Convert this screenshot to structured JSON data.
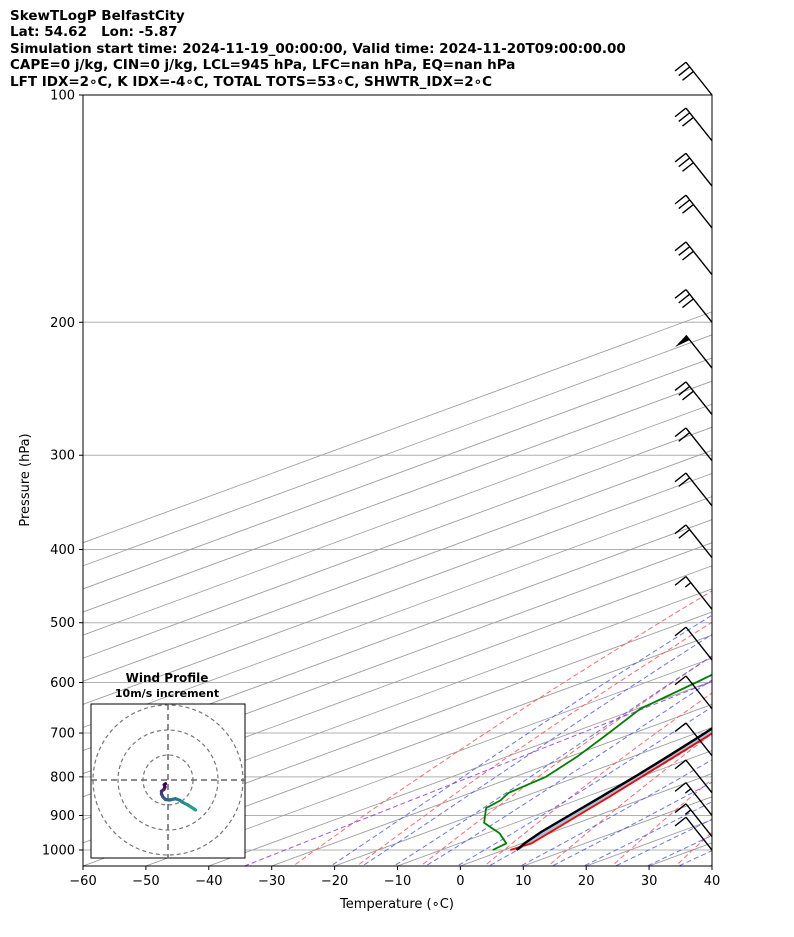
{
  "header": {
    "line1": "SkewTLogP BelfastCity",
    "line2": "Lat: 54.62   Lon: -5.87",
    "line3": "Simulation start time: 2024-11-19_00:00:00, Valid time: 2024-11-20T09:00:00.00",
    "line4": "CAPE=0 j/kg, CIN=0 j/kg, LCL=945 hPa, LFC=nan hPa, EQ=nan hPa",
    "line5": "LFT IDX=2∘C, K IDX=-4∘C, TOTAL TOTS=53∘C, SHWTR_IDX=2∘C"
  },
  "chart_data": {
    "type": "line",
    "xlabel": "Temperature (∘C)",
    "ylabel": "Pressure (hPa)",
    "xlim": [
      -60,
      40
    ],
    "ylim": [
      1050,
      100
    ],
    "y_scale": "log",
    "grid": true,
    "x_ticks": [
      "−60",
      "−50",
      "−40",
      "−30",
      "−20",
      "−10",
      "0",
      "10",
      "20",
      "30",
      "40"
    ],
    "y_ticks": [
      "100",
      "200",
      "300",
      "400",
      "500",
      "600",
      "700",
      "800",
      "900",
      "1000"
    ],
    "series": [
      {
        "role": "temperature",
        "color": "#ff0000",
        "points": [
          [
            1000,
            1
          ],
          [
            980,
            1.5
          ],
          [
            950,
            -0.2
          ],
          [
            900,
            -3.2
          ],
          [
            850,
            -6.3
          ],
          [
            800,
            -9.8
          ],
          [
            750,
            -13.5
          ],
          [
            700,
            -17.5
          ],
          [
            650,
            -22
          ],
          [
            600,
            -27
          ],
          [
            550,
            -32
          ],
          [
            500,
            -37.5
          ],
          [
            470,
            -41
          ],
          [
            450,
            -41.5
          ],
          [
            430,
            -40.5
          ],
          [
            400,
            -38.5
          ],
          [
            380,
            -38.2
          ],
          [
            350,
            -39.5
          ],
          [
            300,
            -42.2
          ],
          [
            280,
            -43
          ],
          [
            250,
            -44.5
          ],
          [
            200,
            -47.5
          ],
          [
            170,
            -49
          ],
          [
            150,
            -50
          ],
          [
            130,
            -51
          ],
          [
            115,
            -52
          ],
          [
            100,
            -52.5
          ]
        ]
      },
      {
        "role": "dewpoint",
        "color": "#008000",
        "points": [
          [
            1000,
            -1.8
          ],
          [
            980,
            -2.5
          ],
          [
            950,
            -8
          ],
          [
            920,
            -15
          ],
          [
            880,
            -21
          ],
          [
            860,
            -22
          ],
          [
            840,
            -24
          ],
          [
            800,
            -25
          ],
          [
            750,
            -29
          ],
          [
            700,
            -34
          ],
          [
            650,
            -39.5
          ],
          [
            600,
            -42
          ],
          [
            550,
            -45
          ],
          [
            500,
            -49
          ],
          [
            460,
            -52
          ],
          [
            430,
            -54
          ],
          [
            400,
            -57.5
          ],
          [
            370,
            -57
          ],
          [
            340,
            -55
          ],
          [
            300,
            -56
          ],
          [
            250,
            -58
          ],
          [
            200,
            -62
          ],
          [
            180,
            -63
          ],
          [
            160,
            -64
          ],
          [
            140,
            -64.5
          ],
          [
            120,
            -68
          ],
          [
            100,
            -72
          ]
        ]
      },
      {
        "role": "parcel",
        "color": "#000000",
        "points": [
          [
            1000,
            2
          ],
          [
            980,
            0.4
          ],
          [
            945,
            -2
          ],
          [
            900,
            -4.6
          ],
          [
            850,
            -7.6
          ],
          [
            800,
            -10.9
          ],
          [
            750,
            -14.6
          ],
          [
            700,
            -18.7
          ],
          [
            650,
            -23.3
          ],
          [
            600,
            -28.5
          ],
          [
            550,
            -34.3
          ],
          [
            500,
            -40.8
          ],
          [
            450,
            -48.3
          ],
          [
            400,
            -56.8
          ],
          [
            350,
            -66.5
          ],
          [
            300,
            -77.7
          ],
          [
            250,
            -90
          ],
          [
            200,
            -105
          ],
          [
            150,
            -122
          ],
          [
            100,
            -140
          ]
        ]
      }
    ],
    "wind_barbs": {
      "pressures": [
        100,
        115,
        132,
        150,
        173,
        200,
        230,
        265,
        305,
        350,
        410,
        480,
        560,
        650,
        750,
        840,
        900,
        960,
        1000
      ],
      "speed_kt": [
        30,
        30,
        30,
        30,
        30,
        30,
        50,
        30,
        20,
        20,
        20,
        15,
        10,
        10,
        10,
        10,
        15,
        15,
        10
      ]
    },
    "hodograph": {
      "title": "Wind Profile",
      "subtitle": "10m/s increment",
      "ring_count": 3,
      "points": [
        [
          11,
          -12
        ],
        [
          8,
          -10
        ],
        [
          6,
          -9
        ],
        [
          4.5,
          -8
        ],
        [
          3,
          -7.5
        ],
        [
          0.5,
          -8
        ],
        [
          -1,
          -7.8
        ],
        [
          -2,
          -6.8
        ],
        [
          -2.6,
          -5.6
        ],
        [
          -2.6,
          -4.5
        ],
        [
          -1.6,
          -3.7
        ],
        [
          -1.2,
          -2.8
        ],
        [
          -1.5,
          -1.9
        ],
        [
          -1,
          -1.5
        ]
      ],
      "colors": [
        "#21a08a",
        "#1f948c",
        "#23898e",
        "#277d8e",
        "#2c718e",
        "#31658e",
        "#375a8c",
        "#3e4c8a",
        "#443983",
        "#472c7a",
        "#48186a",
        "#440154",
        "#440154",
        "#440154"
      ]
    }
  }
}
